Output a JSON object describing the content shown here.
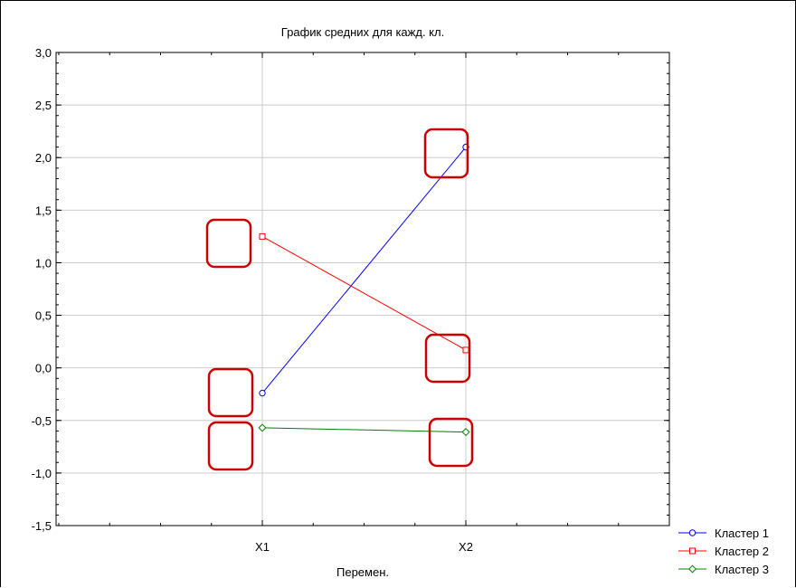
{
  "chart_data": {
    "type": "line",
    "title": "График средних для кажд. кл.",
    "xlabel": "Перемен.",
    "ylabel": "",
    "categories": [
      "X1",
      "X2"
    ],
    "ylim": [
      -1.5,
      3.0
    ],
    "yticks": [
      "3,0",
      "2,5",
      "2,0",
      "1,5",
      "1,0",
      "0,5",
      "0,0",
      "-0,5",
      "-1,0",
      "-1,5"
    ],
    "grid": true,
    "legend_position": "bottom-right",
    "series": [
      {
        "name": "Кластер  1",
        "values": [
          -0.24,
          2.1
        ],
        "color": "#0000ff",
        "marker": "circle"
      },
      {
        "name": "Кластер  2",
        "values": [
          1.25,
          0.17
        ],
        "color": "#ff0000",
        "marker": "square"
      },
      {
        "name": "Кластер  3",
        "values": [
          -0.57,
          -0.61
        ],
        "color": "#008000",
        "marker": "diamond"
      }
    ],
    "annotations": {
      "type": "rounded-rectangle-highlight",
      "color": "#cc0000",
      "count": 7
    }
  }
}
